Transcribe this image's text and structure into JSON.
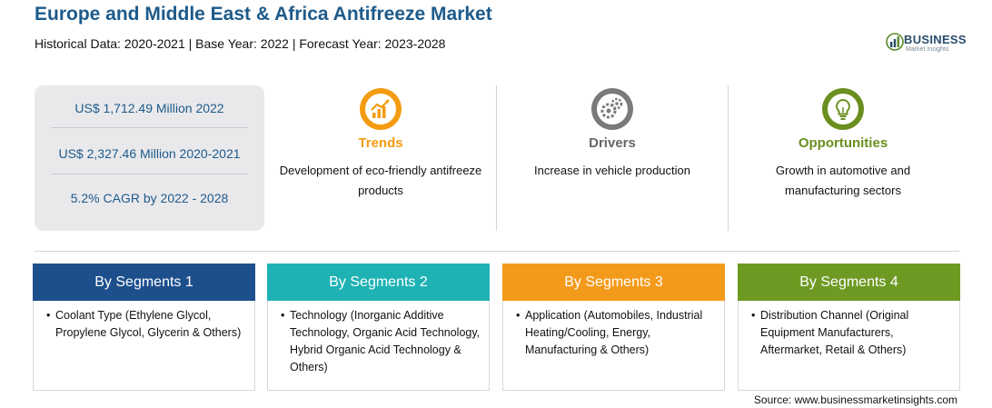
{
  "header": {
    "title": "Europe and Middle East & Africa Antifreeze Market",
    "subtitle": "Historical Data: 2020-2021 | Base Year: 2022 | Forecast Year: 2023-2028"
  },
  "logo": {
    "name": "BUSINESS",
    "tagline": "Market Insights",
    "icon": "bar-chart-logo-icon"
  },
  "stats": [
    "US$ 1,712.49 Million 2022",
    "US$ 2,327.46 Million 2020-2021",
    "5.2% CAGR by 2022 - 2028"
  ],
  "drivers": [
    {
      "label": "Trends",
      "desc": "Development of eco-friendly antifreeze products",
      "color": "#f39c12",
      "icon": "trend-chart-icon"
    },
    {
      "label": "Drivers",
      "desc": "Increase in vehicle production",
      "color": "#666666",
      "icon": "gears-icon"
    },
    {
      "label": "Opportunities",
      "desc": "Growth in automotive and manufacturing sectors",
      "color": "#6a8f1f",
      "icon": "lightbulb-icon"
    }
  ],
  "segments": [
    {
      "title": "By Segments 1",
      "color": "#1d4f8c",
      "text": "Coolant Type (Ethylene Glycol, Propylene Glycol, Glycerin & Others)"
    },
    {
      "title": "By Segments 2",
      "color": "#1fb2b4",
      "text": "Technology (Inorganic Additive Technology, Organic Acid Technology, Hybrid Organic Acid Technology & Others)"
    },
    {
      "title": "By Segments 3",
      "color": "#f49a1a",
      "text": "Application (Automobiles, Industrial Heating/Cooling, Energy, Manufacturing & Others)"
    },
    {
      "title": "By Segments 4",
      "color": "#6e9a24",
      "text": "Distribution Channel (Original Equipment Manufacturers, Aftermarket, Retail & Others)"
    }
  ],
  "footer": {
    "source": "Source: www.businessmarketinsights.com"
  }
}
